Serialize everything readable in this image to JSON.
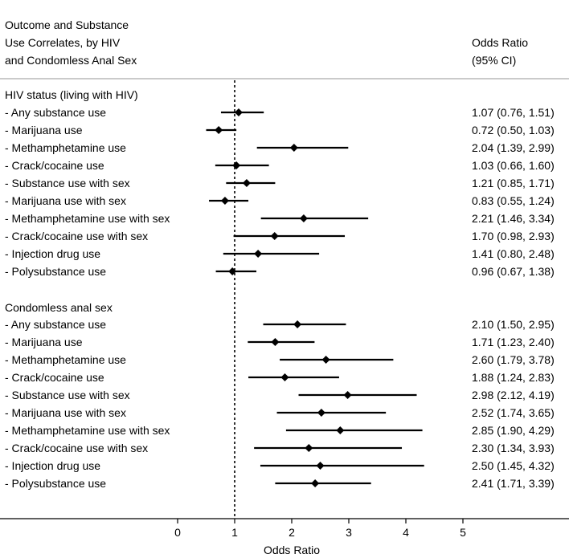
{
  "chart_data": {
    "type": "forest",
    "header_left": [
      "Outcome and Substance",
      "Use Correlates, by HIV",
      "and Condomless Anal Sex"
    ],
    "header_right": [
      "Odds Ratio",
      "(95% CI)"
    ],
    "xlabel": "Odds Ratio",
    "xlim": [
      -2,
      6.5
    ],
    "xticks": [
      0,
      1,
      2,
      3,
      4,
      5
    ],
    "reference_line": 1,
    "groups": [
      {
        "title": "HIV status (living with HIV)",
        "rows": [
          {
            "label": "- Any substance use",
            "or": 1.07,
            "lo": 0.76,
            "hi": 1.51,
            "text": "1.07 (0.76, 1.51)"
          },
          {
            "label": "- Marijuana use",
            "or": 0.72,
            "lo": 0.5,
            "hi": 1.03,
            "text": "0.72 (0.50, 1.03)"
          },
          {
            "label": "- Methamphetamine use",
            "or": 2.04,
            "lo": 1.39,
            "hi": 2.99,
            "text": "2.04 (1.39, 2.99)"
          },
          {
            "label": "- Crack/cocaine use",
            "or": 1.03,
            "lo": 0.66,
            "hi": 1.6,
            "text": "1.03 (0.66, 1.60)"
          },
          {
            "label": "- Substance use with sex",
            "or": 1.21,
            "lo": 0.85,
            "hi": 1.71,
            "text": "1.21 (0.85, 1.71)"
          },
          {
            "label": "- Marijuana use with sex",
            "or": 0.83,
            "lo": 0.55,
            "hi": 1.24,
            "text": "0.83 (0.55, 1.24)"
          },
          {
            "label": "- Methamphetamine use with sex",
            "or": 2.21,
            "lo": 1.46,
            "hi": 3.34,
            "text": "2.21 (1.46, 3.34)"
          },
          {
            "label": "- Crack/cocaine use with sex",
            "or": 1.7,
            "lo": 0.98,
            "hi": 2.93,
            "text": "1.70 (0.98, 2.93)"
          },
          {
            "label": "- Injection drug use",
            "or": 1.41,
            "lo": 0.8,
            "hi": 2.48,
            "text": "1.41 (0.80, 2.48)"
          },
          {
            "label": "- Polysubstance use",
            "or": 0.96,
            "lo": 0.67,
            "hi": 1.38,
            "text": "0.96 (0.67, 1.38)"
          }
        ]
      },
      {
        "title": "Condomless anal sex",
        "rows": [
          {
            "label": "- Any substance use",
            "or": 2.1,
            "lo": 1.5,
            "hi": 2.95,
            "text": "2.10 (1.50, 2.95)"
          },
          {
            "label": "- Marijuana use",
            "or": 1.71,
            "lo": 1.23,
            "hi": 2.4,
            "text": "1.71 (1.23, 2.40)"
          },
          {
            "label": "- Methamphetamine use",
            "or": 2.6,
            "lo": 1.79,
            "hi": 3.78,
            "text": "2.60 (1.79, 3.78)"
          },
          {
            "label": "- Crack/cocaine use",
            "or": 1.88,
            "lo": 1.24,
            "hi": 2.83,
            "text": "1.88 (1.24, 2.83)"
          },
          {
            "label": "- Substance use with sex",
            "or": 2.98,
            "lo": 2.12,
            "hi": 4.19,
            "text": "2.98 (2.12, 4.19)"
          },
          {
            "label": "- Marijuana use with sex",
            "or": 2.52,
            "lo": 1.74,
            "hi": 3.65,
            "text": "2.52 (1.74, 3.65)"
          },
          {
            "label": "- Methamphetamine use with sex",
            "or": 2.85,
            "lo": 1.9,
            "hi": 4.29,
            "text": "2.85 (1.90, 4.29)"
          },
          {
            "label": "- Crack/cocaine use with sex",
            "or": 2.3,
            "lo": 1.34,
            "hi": 3.93,
            "text": "2.30 (1.34, 3.93)"
          },
          {
            "label": "- Injection drug use",
            "or": 2.5,
            "lo": 1.45,
            "hi": 4.32,
            "text": "2.50 (1.45, 4.32)"
          },
          {
            "label": "- Polysubstance use",
            "or": 2.41,
            "lo": 1.71,
            "hi": 3.39,
            "text": "2.41 (1.71, 3.39)"
          }
        ]
      }
    ]
  }
}
